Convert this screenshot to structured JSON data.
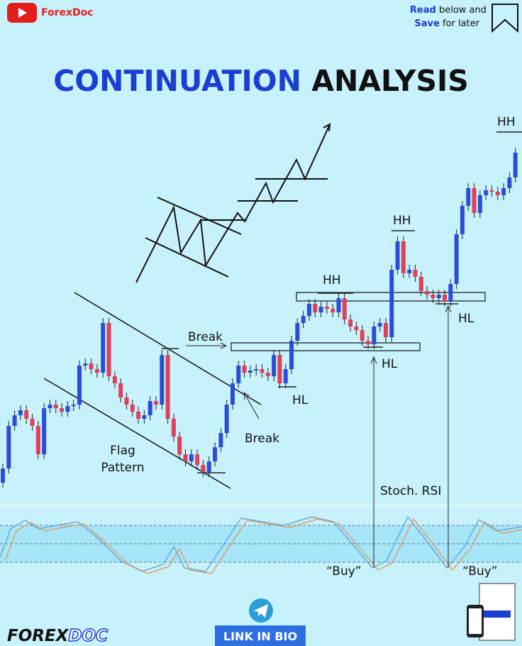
{
  "header": {
    "brand": "ForexDoc",
    "cta": [
      {
        "strong": "Read",
        "text": "below and"
      },
      {
        "strong": "Save",
        "text": "for later"
      }
    ]
  },
  "title": {
    "part1": "CONTINUATION",
    "part2": "ANALYSIS"
  },
  "labels": {
    "hh": [
      "HH",
      "HH",
      "HH"
    ],
    "hl": [
      "HL",
      "HL",
      "HL"
    ],
    "break_top": "Break",
    "break_bottom": "Break",
    "flag": [
      "Flag",
      "Pattern"
    ],
    "stoch": "Stoch. RSI",
    "buy": [
      "“Buy”",
      "“Buy”"
    ]
  },
  "footer": {
    "logo_a": "FOREX",
    "logo_b": "DOC",
    "link": "LINK IN BIO"
  }
}
